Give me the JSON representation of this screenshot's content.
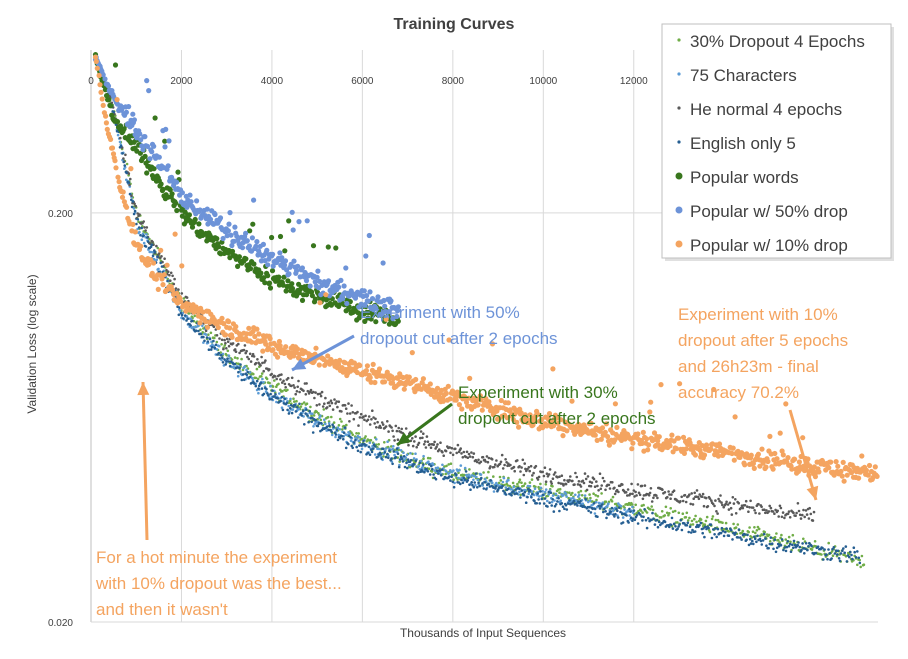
{
  "chart_data": {
    "type": "scatter",
    "title": "Training Curves",
    "xlabel": "Thousands of Input Sequences",
    "ylabel": "Validation Loss (log scale)",
    "xlim": [
      0,
      17400
    ],
    "ylim": [
      0.02,
      0.5
    ],
    "yscale": "log",
    "x_ticks": [
      "0",
      "2000",
      "4000",
      "6000",
      "8000",
      "10000",
      "12000"
    ],
    "y_ticks": [
      "0.200",
      "0.020"
    ],
    "grid": "vertical",
    "legend_position": "top-right",
    "series": [
      {
        "name": "30% Dropout 4 Epochs",
        "color": "#70ad47",
        "marker": "small",
        "x": [
          100,
          500,
          1000,
          2000,
          3000,
          4000,
          5000,
          6000,
          7000,
          8000,
          10000,
          12000,
          14000,
          16000,
          17100
        ],
        "y": [
          0.48,
          0.36,
          0.2,
          0.12,
          0.09,
          0.075,
          0.064,
          0.056,
          0.05,
          0.046,
          0.042,
          0.038,
          0.034,
          0.03,
          0.028
        ]
      },
      {
        "name": "75 Characters",
        "color": "#5b9bd5",
        "marker": "small",
        "x": [
          100,
          500,
          1000,
          2000,
          3000,
          4000,
          5000,
          6000,
          7000,
          8000,
          10000,
          12000
        ],
        "y": [
          0.48,
          0.35,
          0.19,
          0.115,
          0.087,
          0.072,
          0.062,
          0.055,
          0.05,
          0.046,
          0.041,
          0.037
        ]
      },
      {
        "name": "He normal 4 epochs",
        "color": "#595959",
        "marker": "small",
        "x": [
          100,
          500,
          1000,
          2000,
          3000,
          4000,
          5000,
          6000,
          7000,
          8000,
          10000,
          12000,
          14000,
          16000
        ],
        "y": [
          0.48,
          0.36,
          0.2,
          0.125,
          0.097,
          0.082,
          0.071,
          0.063,
          0.057,
          0.052,
          0.046,
          0.042,
          0.039,
          0.036
        ]
      },
      {
        "name": "English only 5",
        "color": "#255e91",
        "marker": "small",
        "x": [
          100,
          500,
          1000,
          2000,
          3000,
          4000,
          5000,
          6000,
          7000,
          8000,
          10000,
          12000,
          14000,
          16000,
          17000
        ],
        "y": [
          0.48,
          0.35,
          0.19,
          0.115,
          0.087,
          0.071,
          0.061,
          0.054,
          0.049,
          0.045,
          0.04,
          0.036,
          0.033,
          0.03,
          0.029
        ]
      },
      {
        "name": "Popular words",
        "color": "#38761d",
        "marker": "large",
        "x": [
          100,
          500,
          1000,
          2000,
          3000,
          4000,
          5000,
          6000,
          6800
        ],
        "y": [
          0.48,
          0.34,
          0.29,
          0.2,
          0.16,
          0.138,
          0.125,
          0.115,
          0.11
        ]
      },
      {
        "name": "Popular w/ 50% drop",
        "color": "#6d93d8",
        "marker": "large",
        "x": [
          100,
          500,
          1000,
          2000,
          3000,
          4000,
          5000,
          6000,
          6800
        ],
        "y": [
          0.48,
          0.38,
          0.32,
          0.22,
          0.18,
          0.155,
          0.135,
          0.123,
          0.115
        ]
      },
      {
        "name": "Popular w/ 10% drop",
        "color": "#f4a460",
        "marker": "large",
        "x": [
          100,
          300,
          700,
          1000,
          1400,
          2000,
          3000,
          4000,
          5000,
          6000,
          7000,
          8000,
          10000,
          12000,
          14000,
          16000,
          17400
        ],
        "y": [
          0.48,
          0.35,
          0.22,
          0.17,
          0.14,
          0.12,
          0.105,
          0.095,
          0.088,
          0.082,
          0.077,
          0.071,
          0.062,
          0.056,
          0.052,
          0.048,
          0.046
        ]
      }
    ],
    "annotations": [
      {
        "lines": [
          "Experiment  with 50%",
          "dropout cut after 2 epochs"
        ],
        "color": "#6d93d8"
      },
      {
        "lines": [
          "Experiment  with 30%",
          "dropout cut after 2 epochs"
        ],
        "color": "#38761d"
      },
      {
        "lines": [
          "Experiment  with 10%",
          "dropout after 5 epochs",
          "and 26h23m - final",
          "accuracy 70.2%"
        ],
        "color": "#f4a460"
      },
      {
        "lines": [
          "For a hot minute the experiment",
          "with 10% dropout was the best...",
          "and then it wasn't"
        ],
        "color": "#f4a460"
      }
    ]
  }
}
